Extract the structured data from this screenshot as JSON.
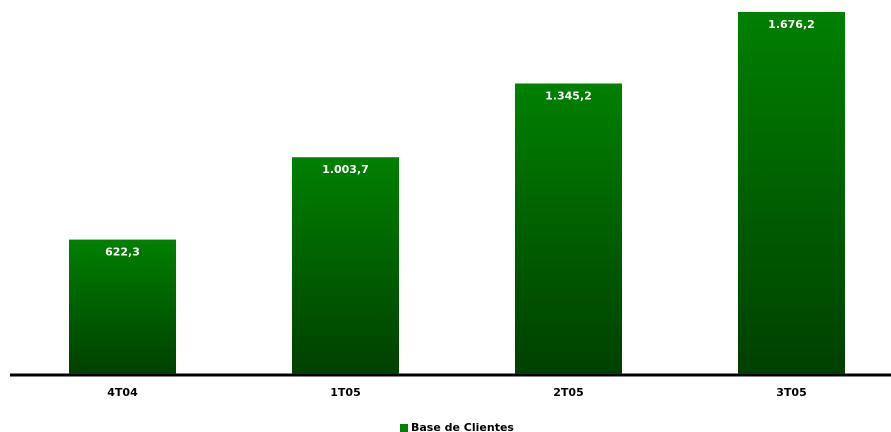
{
  "chart_data": {
    "type": "bar",
    "categories": [
      "4T04",
      "1T05",
      "2T05",
      "3T05"
    ],
    "series": [
      {
        "name": "Base de Clientes",
        "color": "#008000",
        "values": [
          622.3,
          1003.7,
          1345.2,
          1676.2
        ],
        "value_labels": [
          "622,3",
          "1.003,7",
          "1.345,2",
          "1.676,2"
        ]
      }
    ]
  }
}
